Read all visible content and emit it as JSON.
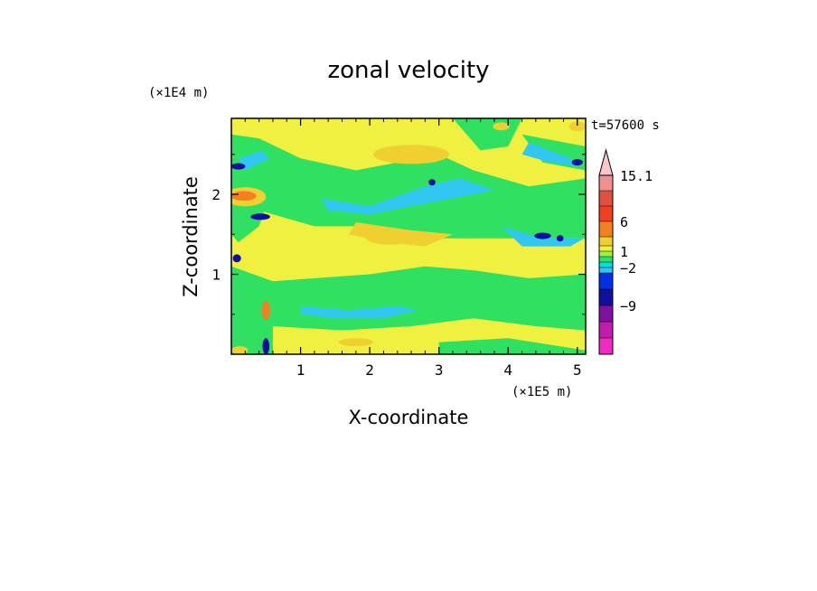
{
  "chart_data": {
    "type": "heatmap",
    "title": "zonal velocity",
    "xlabel": "X-coordinate",
    "ylabel": "Z-coordinate",
    "x_multiplier": "(×1E5 m)",
    "y_multiplier": "(×1E4 m)",
    "time_label": "t=57600 s",
    "xlim": [
      0,
      5.12
    ],
    "ylim": [
      0,
      2.95
    ],
    "x_ticks": [
      1,
      2,
      3,
      4,
      5
    ],
    "x_tick_labels": [
      "1",
      "2",
      "3",
      "4",
      "5"
    ],
    "y_ticks": [
      1,
      2
    ],
    "y_tick_labels": [
      "1",
      "2"
    ],
    "colorbar": {
      "levels": [
        -15,
        -12,
        -9,
        -6,
        -3,
        -2,
        -1,
        0,
        1,
        2,
        3,
        6,
        9,
        12,
        15.1
      ],
      "colors": [
        "#f02cc0",
        "#c01cb0",
        "#8010a0",
        "#1010a0",
        "#0030e0",
        "#30c8f0",
        "#00e0e0",
        "#30e060",
        "#a0f040",
        "#f0f040",
        "#f0d030",
        "#f08020",
        "#f04020",
        "#e05040",
        "#f09090",
        "#f8c8c8"
      ],
      "labels": [
        "15.1",
        "6",
        "1",
        "−2",
        "−9"
      ]
    },
    "field_description_colors": {
      "background": "#30e060"
    },
    "bands": [
      {
        "kind": "poly",
        "color": "#f0f040",
        "pts": [
          [
            0,
            2.95
          ],
          [
            5.12,
            2.95
          ],
          [
            5.12,
            2.2
          ],
          [
            4.3,
            2.1
          ],
          [
            3.5,
            2.3
          ],
          [
            3.0,
            2.5
          ],
          [
            2.4,
            2.4
          ],
          [
            1.8,
            2.3
          ],
          [
            1.0,
            2.45
          ],
          [
            0.4,
            2.7
          ],
          [
            0,
            2.75
          ]
        ]
      },
      {
        "kind": "poly",
        "color": "#30e060",
        "pts": [
          [
            0.8,
            2.3
          ],
          [
            1.6,
            2.15
          ],
          [
            2.4,
            2.25
          ],
          [
            3.0,
            2.4
          ],
          [
            3.6,
            2.15
          ],
          [
            4.4,
            1.95
          ],
          [
            5.12,
            2.0
          ],
          [
            5.12,
            1.6
          ],
          [
            4.0,
            1.7
          ],
          [
            3.2,
            1.9
          ],
          [
            2.4,
            2.0
          ],
          [
            1.6,
            1.85
          ],
          [
            0.8,
            1.95
          ]
        ]
      },
      {
        "kind": "poly",
        "color": "#30c8f0",
        "pts": [
          [
            1.3,
            1.95
          ],
          [
            2.0,
            1.85
          ],
          [
            2.8,
            2.1
          ],
          [
            3.3,
            2.2
          ],
          [
            3.8,
            2.05
          ],
          [
            3.2,
            1.95
          ],
          [
            2.6,
            1.85
          ],
          [
            2.0,
            1.75
          ],
          [
            1.4,
            1.8
          ]
        ]
      },
      {
        "kind": "poly",
        "color": "#f0f040",
        "pts": [
          [
            0,
            1.9
          ],
          [
            1.2,
            1.6
          ],
          [
            2.0,
            1.6
          ],
          [
            3.0,
            1.45
          ],
          [
            4.0,
            1.45
          ],
          [
            5.12,
            1.45
          ],
          [
            5.12,
            1.0
          ],
          [
            4.3,
            0.95
          ],
          [
            3.5,
            1.05
          ],
          [
            2.8,
            1.1
          ],
          [
            2.0,
            1.0
          ],
          [
            1.2,
            0.95
          ],
          [
            0.4,
            0.9
          ],
          [
            0,
            1.1
          ]
        ]
      },
      {
        "kind": "poly",
        "color": "#f0d030",
        "pts": [
          [
            1.8,
            1.65
          ],
          [
            2.6,
            1.55
          ],
          [
            3.2,
            1.5
          ],
          [
            2.8,
            1.35
          ],
          [
            2.2,
            1.4
          ],
          [
            1.7,
            1.5
          ]
        ]
      },
      {
        "kind": "poly",
        "color": "#30e060",
        "pts": [
          [
            0,
            1.1
          ],
          [
            0.8,
            0.85
          ],
          [
            1.8,
            0.85
          ],
          [
            2.6,
            0.95
          ],
          [
            3.4,
            0.9
          ],
          [
            4.2,
            0.85
          ],
          [
            5.12,
            0.9
          ],
          [
            5.12,
            0.35
          ],
          [
            4.2,
            0.4
          ],
          [
            3.4,
            0.55
          ],
          [
            2.4,
            0.45
          ],
          [
            1.4,
            0.4
          ],
          [
            0.6,
            0.45
          ],
          [
            0,
            0.6
          ]
        ]
      },
      {
        "kind": "poly",
        "color": "#30c8f0",
        "pts": [
          [
            1.0,
            0.6
          ],
          [
            1.7,
            0.55
          ],
          [
            2.4,
            0.6
          ],
          [
            2.7,
            0.55
          ],
          [
            2.2,
            0.45
          ],
          [
            1.5,
            0.45
          ],
          [
            1.0,
            0.5
          ]
        ]
      },
      {
        "kind": "poly",
        "color": "#f0f040",
        "pts": [
          [
            0.6,
            0.35
          ],
          [
            1.6,
            0.3
          ],
          [
            2.6,
            0.35
          ],
          [
            3.5,
            0.45
          ],
          [
            4.4,
            0.35
          ],
          [
            5.12,
            0.3
          ],
          [
            5.12,
            0.0
          ],
          [
            0.6,
            0.0
          ]
        ]
      },
      {
        "kind": "poly",
        "color": "#30e060",
        "pts": [
          [
            3.0,
            0.15
          ],
          [
            4.0,
            0.2
          ],
          [
            5.12,
            0.05
          ],
          [
            5.12,
            0
          ],
          [
            3.0,
            0
          ]
        ]
      },
      {
        "kind": "poly",
        "color": "#30e060",
        "pts": [
          [
            0,
            2.0
          ],
          [
            0.3,
            2.2
          ],
          [
            0.6,
            2.1
          ],
          [
            0.4,
            1.6
          ],
          [
            0.1,
            1.4
          ],
          [
            0,
            1.5
          ]
        ]
      },
      {
        "kind": "poly",
        "color": "#30e060",
        "pts": [
          [
            3.2,
            2.95
          ],
          [
            4.2,
            2.95
          ],
          [
            4.0,
            2.6
          ],
          [
            3.6,
            2.55
          ]
        ]
      },
      {
        "kind": "poly",
        "color": "#30e060",
        "pts": [
          [
            4.2,
            2.75
          ],
          [
            5.12,
            2.6
          ],
          [
            5.12,
            2.3
          ],
          [
            4.5,
            2.4
          ]
        ]
      },
      {
        "kind": "poly",
        "color": "#30c8f0",
        "pts": [
          [
            4.3,
            2.65
          ],
          [
            4.9,
            2.45
          ],
          [
            5.05,
            2.35
          ],
          [
            4.6,
            2.4
          ],
          [
            4.2,
            2.5
          ]
        ]
      },
      {
        "kind": "poly",
        "color": "#30c8f0",
        "pts": [
          [
            3.9,
            1.6
          ],
          [
            4.5,
            1.45
          ],
          [
            5.1,
            1.45
          ],
          [
            4.9,
            1.35
          ],
          [
            4.2,
            1.35
          ]
        ]
      },
      {
        "kind": "poly",
        "color": "#30c8f0",
        "pts": [
          [
            0.1,
            2.45
          ],
          [
            0.45,
            2.55
          ],
          [
            0.55,
            2.45
          ],
          [
            0.2,
            2.3
          ]
        ]
      },
      {
        "kind": "ell",
        "color": "#f08020",
        "cx": 2.7,
        "cy": 2.5,
        "rx": 0.35,
        "ry": 0.07
      },
      {
        "kind": "ell",
        "color": "#f0d030",
        "cx": 2.6,
        "cy": 2.5,
        "rx": 0.55,
        "ry": 0.12
      },
      {
        "kind": "ell",
        "color": "#f0d030",
        "cx": 0.2,
        "cy": 1.97,
        "rx": 0.3,
        "ry": 0.12
      },
      {
        "kind": "ell",
        "color": "#f08020",
        "cx": 0.18,
        "cy": 1.98,
        "rx": 0.18,
        "ry": 0.06
      },
      {
        "kind": "ell",
        "color": "#f0d030",
        "cx": 2.3,
        "cy": 1.45,
        "rx": 0.35,
        "ry": 0.08
      },
      {
        "kind": "ell",
        "color": "#f0d030",
        "cx": 3.9,
        "cy": 2.85,
        "rx": 0.12,
        "ry": 0.05
      },
      {
        "kind": "ell",
        "color": "#f0d030",
        "cx": 5.0,
        "cy": 2.85,
        "rx": 0.12,
        "ry": 0.06
      },
      {
        "kind": "ell",
        "color": "#f0d030",
        "cx": 1.8,
        "cy": 0.15,
        "rx": 0.25,
        "ry": 0.05
      },
      {
        "kind": "ell",
        "color": "#f0d030",
        "cx": 0.12,
        "cy": 0.05,
        "rx": 0.12,
        "ry": 0.05
      },
      {
        "kind": "ell",
        "color": "#f08020",
        "cx": 0.5,
        "cy": 0.55,
        "rx": 0.06,
        "ry": 0.12
      },
      {
        "kind": "ell",
        "color": "#1010a0",
        "cx": 0.42,
        "cy": 1.72,
        "rx": 0.14,
        "ry": 0.04
      },
      {
        "kind": "ell",
        "color": "#1010a0",
        "cx": 2.9,
        "cy": 2.15,
        "rx": 0.05,
        "ry": 0.04
      },
      {
        "kind": "ell",
        "color": "#1010a0",
        "cx": 4.5,
        "cy": 1.48,
        "rx": 0.12,
        "ry": 0.04
      },
      {
        "kind": "ell",
        "color": "#1010a0",
        "cx": 4.75,
        "cy": 1.45,
        "rx": 0.05,
        "ry": 0.04
      },
      {
        "kind": "ell",
        "color": "#1010a0",
        "cx": 0.1,
        "cy": 2.35,
        "rx": 0.1,
        "ry": 0.04
      },
      {
        "kind": "ell",
        "color": "#1010a0",
        "cx": 5.0,
        "cy": 2.4,
        "rx": 0.08,
        "ry": 0.04
      },
      {
        "kind": "ell",
        "color": "#1010a0",
        "cx": 0.5,
        "cy": 0.1,
        "rx": 0.05,
        "ry": 0.1
      },
      {
        "kind": "ell",
        "color": "#1010a0",
        "cx": 0.08,
        "cy": 1.2,
        "rx": 0.06,
        "ry": 0.05
      }
    ]
  }
}
